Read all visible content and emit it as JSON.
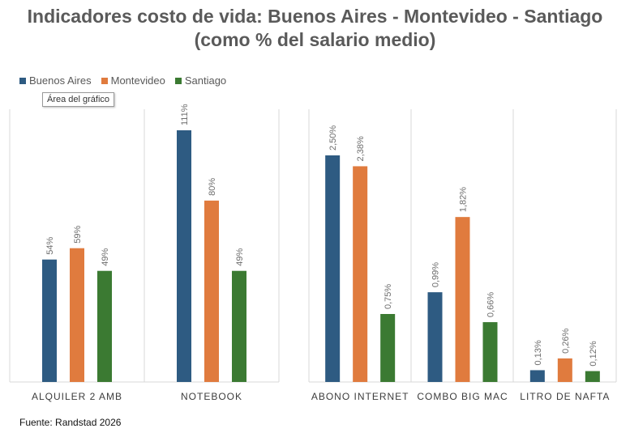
{
  "title_line1": "Indicadores costo de vida: Buenos Aires - Montevideo - Santiago",
  "title_line2": "(como % del salario medio)",
  "tooltip": "Área del gráfico",
  "source": "Fuente: Randstad 2026",
  "colors": {
    "buenos_aires": "#2e5b82",
    "montevideo": "#e07b3e",
    "santiago": "#3b7a32"
  },
  "chart_data": [
    {
      "type": "bar",
      "categories": [
        "ALQUILER 2 AMB",
        "NOTEBOOK"
      ],
      "series": [
        {
          "name": "Buenos Aires",
          "values": [
            54,
            111
          ],
          "labels": [
            "54%",
            "111%"
          ]
        },
        {
          "name": "Montevideo",
          "values": [
            59,
            80
          ],
          "labels": [
            "59%",
            "80%"
          ]
        },
        {
          "name": "Santiago",
          "values": [
            49,
            49
          ],
          "labels": [
            "49%",
            "49%"
          ]
        }
      ],
      "ylim": [
        0,
        125
      ],
      "legend": "top-left",
      "grid": false
    },
    {
      "type": "bar",
      "categories": [
        "ABONO INTERNET",
        "COMBO BIG MAC",
        "LITRO DE NAFTA"
      ],
      "series": [
        {
          "name": "Buenos Aires",
          "values": [
            2.5,
            0.99,
            0.13
          ],
          "labels": [
            "2,50%",
            "0,99%",
            "0,13%"
          ]
        },
        {
          "name": "Montevideo",
          "values": [
            2.38,
            1.82,
            0.26
          ],
          "labels": [
            "2,38%",
            "1,82%",
            "0,26%"
          ]
        },
        {
          "name": "Santiago",
          "values": [
            0.75,
            0.66,
            0.12
          ],
          "labels": [
            "0,75%",
            "0,66%",
            "0,12%"
          ]
        }
      ],
      "ylim": [
        0,
        2.75
      ],
      "grid": false
    }
  ]
}
